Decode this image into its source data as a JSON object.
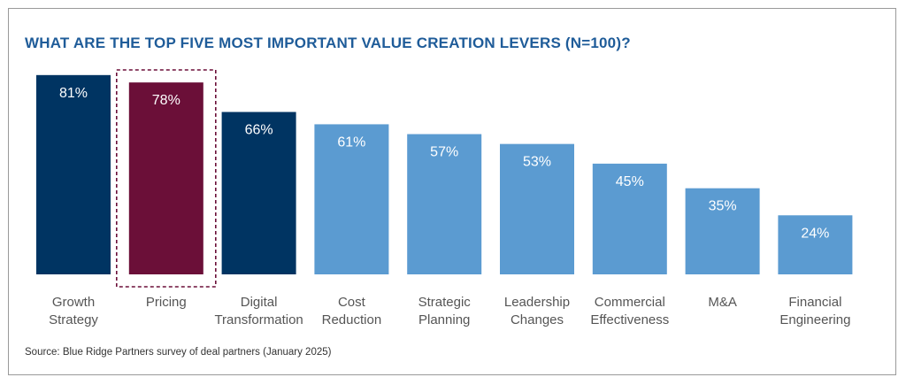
{
  "colors": {
    "title": "#1f5c99",
    "highlight_bar": "#6b0f38",
    "dark_bar": "#003462",
    "light_bar": "#5b9bd1",
    "highlight_box": "#6b0f38",
    "label_text": "#555555",
    "value_text": "#ffffff"
  },
  "header": {
    "title": "WHAT ARE THE TOP FIVE MOST IMPORTANT VALUE CREATION LEVERS (N=100)?"
  },
  "footer": {
    "source": "Source: Blue Ridge Partners survey of deal partners (January 2025)"
  },
  "chart_data": {
    "type": "bar",
    "categories": [
      [
        "Growth",
        "Strategy"
      ],
      [
        "Pricing"
      ],
      [
        "Digital",
        "Transformation"
      ],
      [
        "Cost",
        "Reduction"
      ],
      [
        "Strategic",
        "Planning"
      ],
      [
        "Leadership",
        "Changes"
      ],
      [
        "Commercial",
        "Effectiveness"
      ],
      [
        "M&A"
      ],
      [
        "Financial",
        "Engineering"
      ]
    ],
    "values": [
      81,
      78,
      66,
      61,
      57,
      53,
      45,
      35,
      24
    ],
    "value_labels": [
      "81%",
      "78%",
      "66%",
      "61%",
      "57%",
      "53%",
      "45%",
      "35%",
      "24%"
    ],
    "bar_styles": [
      "dark",
      "highlight",
      "dark",
      "light",
      "light",
      "light",
      "light",
      "light",
      "light"
    ],
    "highlighted_category": "Pricing",
    "ylim": [
      0,
      100
    ],
    "grid": false,
    "legend": "none"
  }
}
